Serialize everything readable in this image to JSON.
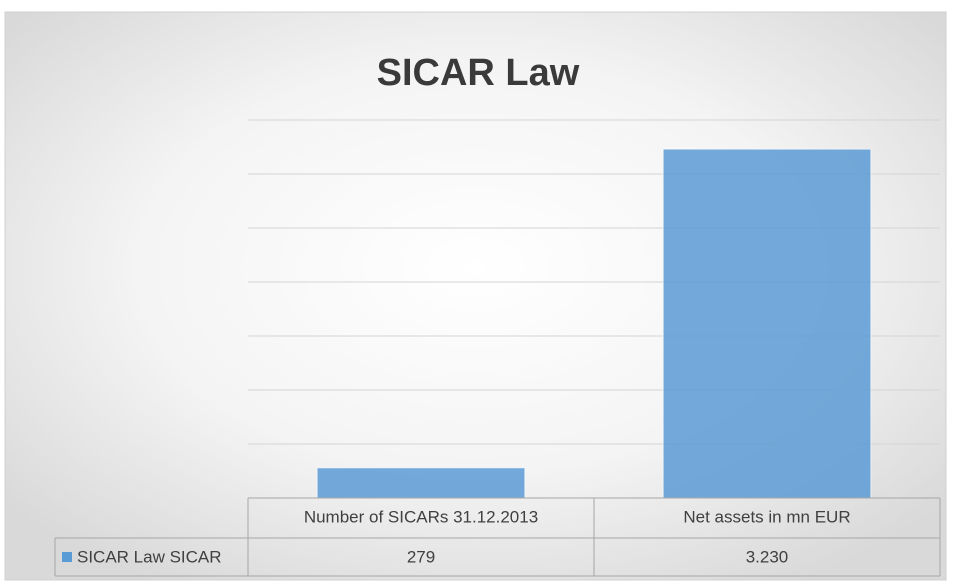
{
  "chart_data": {
    "type": "bar",
    "title": "SICAR Law",
    "categories": [
      "Number of SICARs 31.12.2013",
      "Net assets in mn EUR"
    ],
    "series": [
      {
        "name": "SICAR Law SICAR",
        "color": "#5b9bd5",
        "values": [
          279,
          3230
        ],
        "value_labels": [
          "279",
          "3.230"
        ]
      }
    ],
    "ylim": [
      0,
      3500
    ],
    "yticks": [
      0,
      500,
      1000,
      1500,
      2000,
      2500,
      3000,
      3500
    ],
    "grid": true
  }
}
